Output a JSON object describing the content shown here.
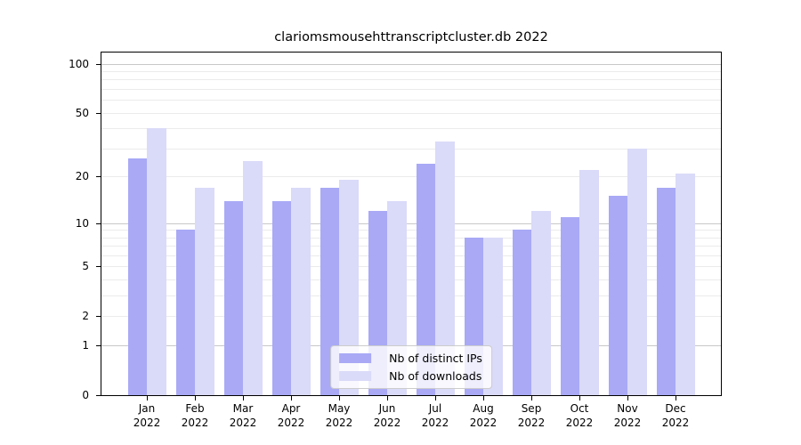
{
  "title": "clariomsmousehttranscriptcluster.db 2022",
  "chart_data": {
    "type": "bar",
    "categories": [
      "Jan",
      "Feb",
      "Mar",
      "Apr",
      "May",
      "Jun",
      "Jul",
      "Aug",
      "Sep",
      "Oct",
      "Nov",
      "Dec"
    ],
    "x_sublabel": "2022",
    "series": [
      {
        "name": "Nb of distinct IPs",
        "color": "#a9a9f6",
        "values": [
          26,
          9,
          14,
          14,
          17,
          12,
          24,
          8,
          9,
          11,
          15,
          17
        ]
      },
      {
        "name": "Nb of downloads",
        "color": "#dadaf9",
        "values": [
          40,
          17,
          25,
          17,
          19,
          14,
          33,
          8,
          12,
          22,
          30,
          21
        ]
      }
    ],
    "yscale": "log1p",
    "ylim": [
      0,
      117
    ],
    "ytick_values": [
      0,
      1,
      2,
      5,
      10,
      20,
      50,
      100
    ],
    "major_grid_values": [
      1,
      10,
      100
    ],
    "minor_grid_values": [
      2,
      3,
      4,
      5,
      6,
      7,
      8,
      9,
      20,
      30,
      40,
      50,
      60,
      70,
      80,
      90
    ],
    "legend_position": "lower center",
    "colors": {
      "major_grid": "#c8c8c8",
      "minor_grid": "#ebebeb",
      "axis": "#000000",
      "background": "#ffffff",
      "text": "#000000"
    }
  }
}
